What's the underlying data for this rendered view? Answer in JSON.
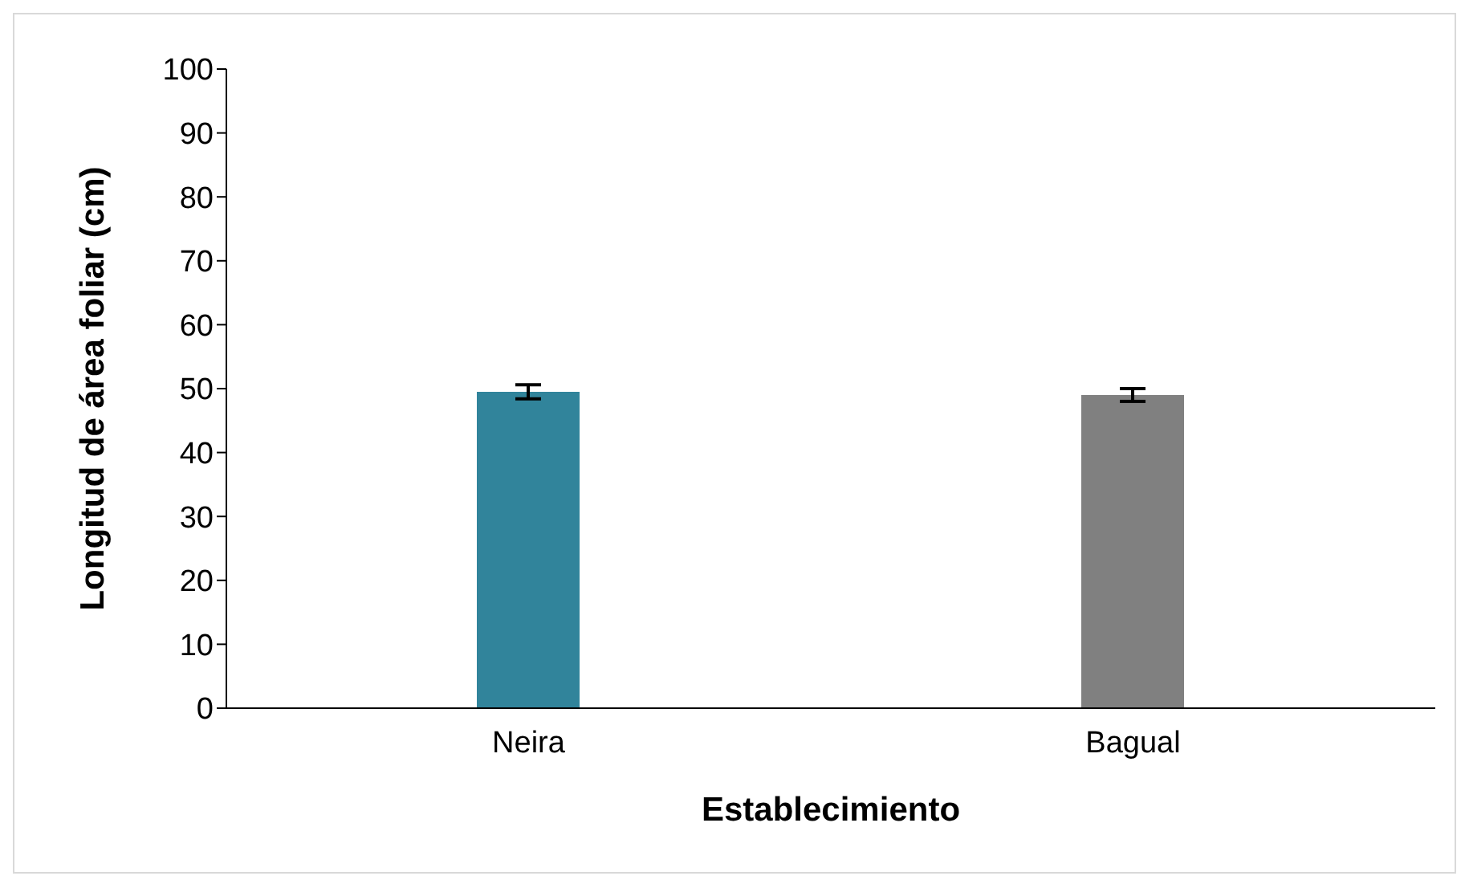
{
  "chart_data": {
    "type": "bar",
    "xlabel": "Establecimiento",
    "ylabel": "Longitud de área foliar (cm)",
    "categories": [
      "Neira",
      "Bagual"
    ],
    "values": [
      49.5,
      49
    ],
    "colors": [
      "#31849b",
      "#808080"
    ],
    "errors": [
      1.1,
      1
    ],
    "ylim": [
      0,
      100
    ],
    "yticks": [
      0,
      10,
      20,
      30,
      40,
      50,
      60,
      70,
      80,
      90,
      100
    ],
    "grid": false
  }
}
